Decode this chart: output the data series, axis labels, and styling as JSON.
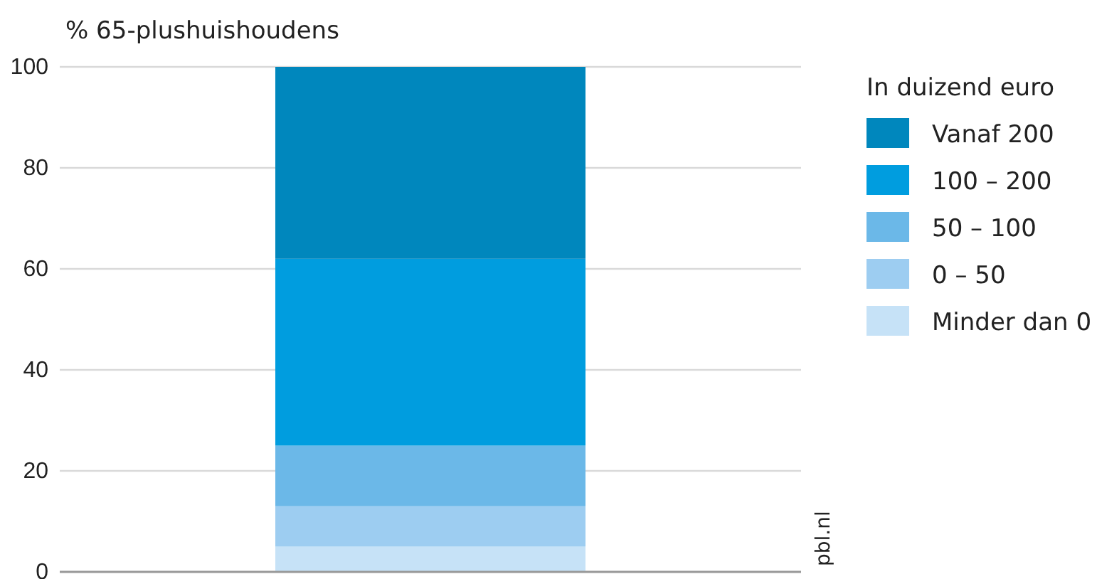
{
  "chart_data": {
    "type": "bar",
    "ylabel": "% 65-plushuishoudens",
    "legend_title": "In duizend euro",
    "categories": [
      null
    ],
    "stacked": true,
    "series": [
      {
        "name": "Minder dan 0",
        "color": "#c6e2f7",
        "values": [
          5
        ]
      },
      {
        "name": "0 – 50",
        "color": "#9dcdf1",
        "values": [
          8
        ]
      },
      {
        "name": "50 – 100",
        "color": "#6bb8e8",
        "values": [
          12
        ]
      },
      {
        "name": "100 – 200",
        "color": "#009ddf",
        "values": [
          37
        ]
      },
      {
        "name": "Vanaf 200",
        "color": "#0087bd",
        "values": [
          38
        ]
      }
    ],
    "ylim": [
      0,
      100
    ],
    "yticks": [
      0,
      20,
      40,
      60,
      80,
      100
    ],
    "grid": "y",
    "legend": "top right",
    "annotations": [
      "pbl.nl"
    ]
  }
}
